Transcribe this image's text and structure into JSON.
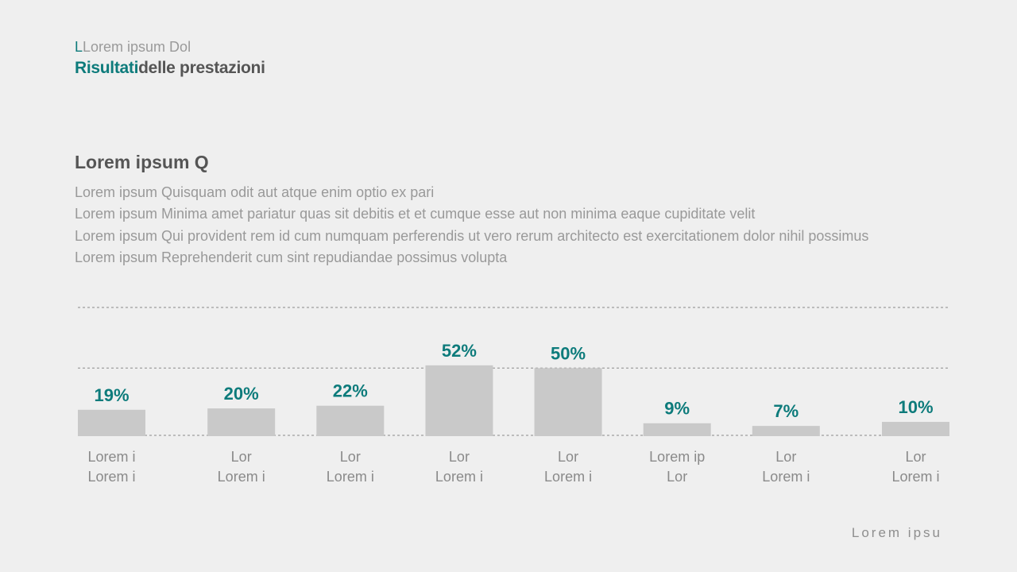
{
  "header": {
    "kicker_first": "L",
    "kicker_rest": "Lorem ipsum Dol",
    "title_accent": "Risultati",
    "title_rest": "delle prestazioni"
  },
  "section": {
    "heading": "Lorem ipsum Q",
    "lines": [
      "Lorem ipsum Quisquam odit aut atque enim optio ex pari",
      "Lorem ipsum Minima amet pariatur quas sit debitis et et cumque esse aut non minima eaque cupiditate velit",
      "Lorem ipsum Qui provident rem id cum numquam perferendis ut vero rerum architecto est exercitationem dolor nihil possimus",
      "Lorem ipsum Reprehenderit cum sint repudiandae possimus volupta"
    ]
  },
  "chart_data": {
    "type": "bar",
    "categories": [
      [
        "Lorem i",
        "Lorem i"
      ],
      [
        "Lor",
        "Lorem i"
      ],
      [
        "Lor",
        "Lorem i"
      ],
      [
        "Lor",
        "Lorem i"
      ],
      [
        "Lor",
        "Lorem i"
      ],
      [
        "Lorem ip",
        "Lor"
      ],
      [
        "Lor",
        "Lorem i"
      ],
      [
        "Lor",
        "Lorem i"
      ]
    ],
    "values": [
      19,
      20,
      22,
      52,
      50,
      9,
      7,
      10
    ],
    "value_labels": [
      "19%",
      "20%",
      "22%",
      "52%",
      "50%",
      "9%",
      "7%",
      "10%"
    ],
    "ylim": [
      0,
      95
    ],
    "gridlines": [
      0,
      50,
      95
    ],
    "bar_color": "#c9c9c9",
    "label_color": "#0d7b7b",
    "grid_color": "#8a8a8a"
  },
  "footer": {
    "text": "Lorem ipsu"
  }
}
